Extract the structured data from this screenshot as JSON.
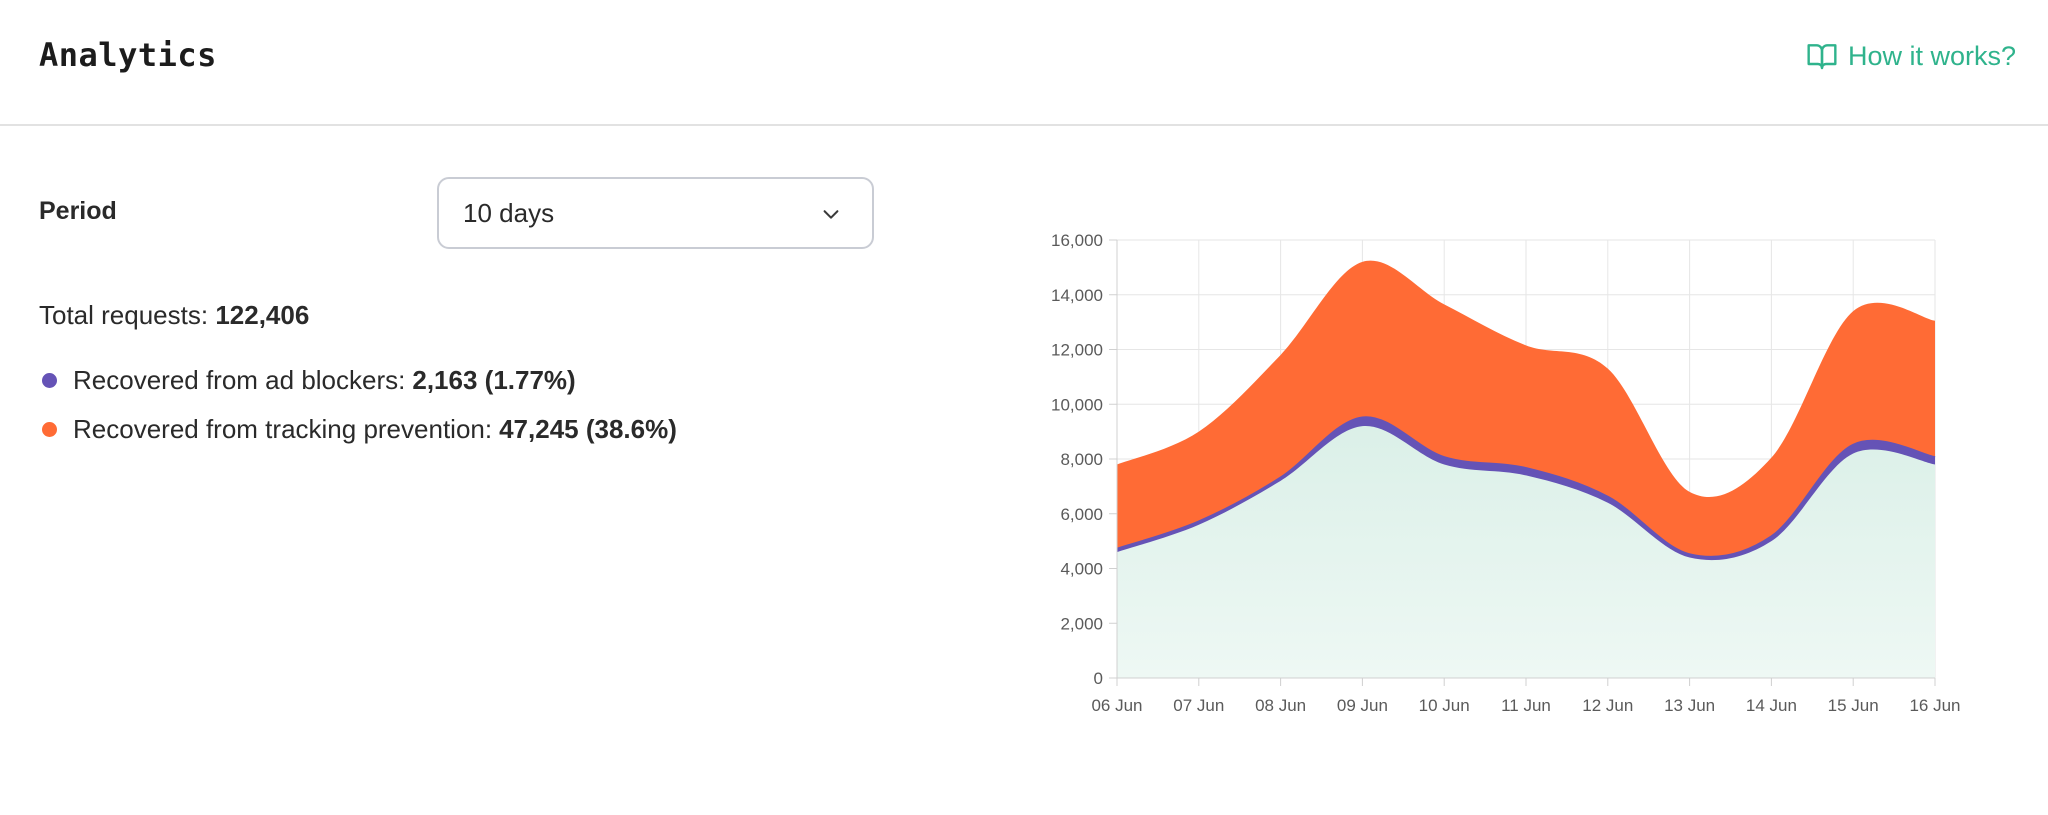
{
  "header": {
    "title": "Analytics",
    "help_link": "How it works?"
  },
  "period": {
    "label": "Period",
    "selected": "10 days"
  },
  "summary": {
    "total_label": "Total requests: ",
    "total_value": "122,406",
    "items": [
      {
        "label": "Recovered from ad blockers:",
        "value": "2,163 (1.77%)",
        "color": "#6553b6"
      },
      {
        "label": "Recovered from tracking prevention:",
        "value": "47,245 (38.6%)",
        "color": "#ff6b35"
      }
    ]
  },
  "icons": {
    "help": "book-open-icon",
    "dropdown": "chevron-down-icon"
  },
  "colors": {
    "accent": "#2fb38c",
    "base_area": "#dbf0e8",
    "ad_blockers": "#6553b6",
    "tracking_prevention": "#ff6b35"
  },
  "chart_data": {
    "type": "area",
    "stacked": true,
    "categories": [
      "06 Jun",
      "07 Jun",
      "08 Jun",
      "09 Jun",
      "10 Jun",
      "11 Jun",
      "12 Jun",
      "13 Jun",
      "14 Jun",
      "15 Jun",
      "16 Jun"
    ],
    "series": [
      {
        "name": "",
        "color": "#dbf0e8",
        "values": [
          4600,
          5600,
          7200,
          9200,
          7800,
          7400,
          6400,
          4400,
          5000,
          8200,
          7800
        ]
      },
      {
        "name": "Recovered from ad blockers",
        "color": "#6553b6",
        "values": [
          100,
          100,
          100,
          300,
          250,
          250,
          200,
          100,
          150,
          300,
          250
        ]
      },
      {
        "name": "Recovered from tracking prevention",
        "color": "#ff6b35",
        "values": [
          3100,
          3300,
          4500,
          5700,
          5600,
          4500,
          4700,
          2300,
          2900,
          4900,
          5000
        ]
      }
    ],
    "y_ticks": [
      "0",
      "2,000",
      "4,000",
      "6,000",
      "8,000",
      "10,000",
      "12,000",
      "14,000",
      "16,000"
    ],
    "ylim": [
      0,
      16000
    ],
    "grid": true,
    "legend": "none"
  }
}
